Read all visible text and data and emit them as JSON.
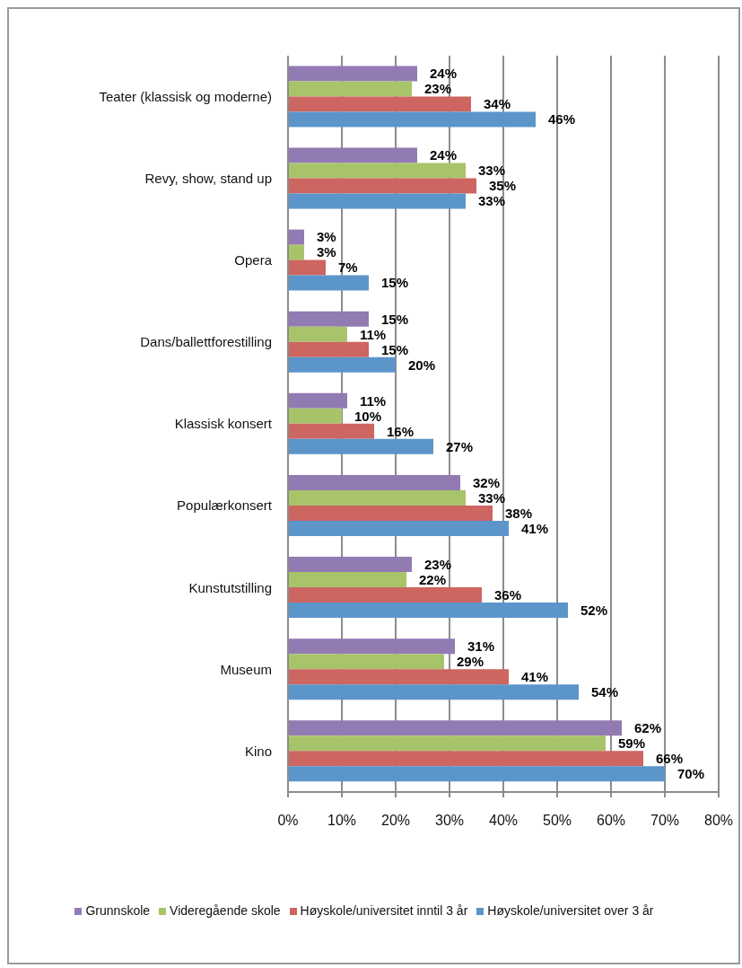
{
  "chart_data": {
    "type": "bar",
    "orientation": "horizontal",
    "categories": [
      "Teater (klassisk og moderne)",
      "Revy, show, stand up",
      "Opera",
      "Dans/ballettforestilling",
      "Klassisk konsert",
      "Populærkonsert",
      "Kunstutstilling",
      "Museum",
      "Kino"
    ],
    "series": [
      {
        "name": "Grunnskole",
        "color": "#927ab3",
        "values": [
          24,
          24,
          3,
          15,
          11,
          32,
          23,
          31,
          62
        ],
        "value_labels": [
          "24%",
          "24%",
          "3%",
          "15%",
          "11%",
          "32%",
          "23%",
          "31%",
          "62%"
        ]
      },
      {
        "name": "Videregående skole",
        "color": "#a8c46b",
        "values": [
          23,
          33,
          3,
          11,
          10,
          33,
          22,
          29,
          59
        ],
        "value_labels": [
          "23%",
          "33%",
          "3%",
          "11%",
          "10%",
          "33%",
          "22%",
          "29%",
          "59%"
        ]
      },
      {
        "name": "Høyskole/universitet inntil 3 år",
        "color": "#cd6560",
        "values": [
          34,
          35,
          7,
          15,
          16,
          38,
          36,
          41,
          66
        ],
        "value_labels": [
          "34%",
          "35%",
          "7%",
          "15%",
          "16%",
          "38%",
          "36%",
          "41%",
          "66%"
        ]
      },
      {
        "name": "Høyskole/universitet over 3 år",
        "color": "#5c95ca",
        "values": [
          46,
          33,
          15,
          20,
          27,
          41,
          52,
          54,
          70
        ],
        "value_labels": [
          "46%",
          "33%",
          "15%",
          "20%",
          "27%",
          "41%",
          "52%",
          "54%",
          "70%"
        ]
      }
    ],
    "xlim": [
      0,
      80
    ],
    "xticks": [
      {
        "value": 0,
        "label": "0%"
      },
      {
        "value": 10,
        "label": "10%"
      },
      {
        "value": 20,
        "label": "20%"
      },
      {
        "value": 30,
        "label": "30%"
      },
      {
        "value": 40,
        "label": "40%"
      },
      {
        "value": 50,
        "label": "50%"
      },
      {
        "value": 60,
        "label": "60%"
      },
      {
        "value": 70,
        "label": "70%"
      },
      {
        "value": 80,
        "label": "80%"
      }
    ],
    "grid": "x",
    "legend": "bottom"
  }
}
